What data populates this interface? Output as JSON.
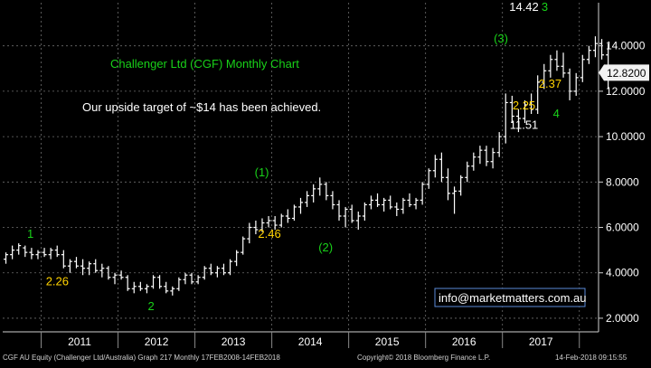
{
  "chart_data": {
    "type": "ohlc",
    "title": "Challenger Ltd (CGF) Monthly Chart",
    "note": "Our upside target of ~$14 has been achieved.",
    "contact": "info@marketmatters.com.au",
    "footer_left": "CGF AU Equity (Challenger Ltd/Australia) Graph 217  Monthly 17FEB2008-14FEB2018",
    "footer_mid": "Copyright© 2018 Bloomberg Finance L.P.",
    "footer_right": "14-Feb-2018 09:15:55",
    "last_price": "12.8200",
    "y_ticks": [
      "2.0000",
      "4.0000",
      "6.0000",
      "8.0000",
      "10.0000",
      "12.0000",
      "14.0000"
    ],
    "y_tick_values": [
      2,
      4,
      6,
      8,
      10,
      12,
      14
    ],
    "ylim": [
      1.4,
      15.9
    ],
    "x_years": [
      "2011",
      "2012",
      "2013",
      "2014",
      "2015",
      "2016",
      "2017"
    ],
    "start_year": 2010.5,
    "end_year": 2018.25,
    "colors": {
      "up": "#ffffff",
      "down": "#ffffff",
      "grid": "#6e6e6e",
      "green": "#19d219",
      "yellow": "#ffd200",
      "white": "#ffffff"
    },
    "bars": [
      [
        4.6,
        4.9,
        4.4,
        4.8
      ],
      [
        4.8,
        5.2,
        4.6,
        5.0
      ],
      [
        5.0,
        5.3,
        4.8,
        5.2
      ],
      [
        5.1,
        5.2,
        4.7,
        4.9
      ],
      [
        4.9,
        5.1,
        4.6,
        4.8
      ],
      [
        4.8,
        5.0,
        4.6,
        4.9
      ],
      [
        4.9,
        5.1,
        4.7,
        4.8
      ],
      [
        4.8,
        5.1,
        4.6,
        5.0
      ],
      [
        5.0,
        5.2,
        4.7,
        4.8
      ],
      [
        4.8,
        5.0,
        4.2,
        4.3
      ],
      [
        4.3,
        4.6,
        4.0,
        4.5
      ],
      [
        4.5,
        4.7,
        4.2,
        4.3
      ],
      [
        4.3,
        4.6,
        3.9,
        4.2
      ],
      [
        4.2,
        4.5,
        3.9,
        4.4
      ],
      [
        4.4,
        4.6,
        4.0,
        4.1
      ],
      [
        4.1,
        4.4,
        3.8,
        4.2
      ],
      [
        4.2,
        4.3,
        3.7,
        3.8
      ],
      [
        3.8,
        4.0,
        3.5,
        3.9
      ],
      [
        3.9,
        4.1,
        3.7,
        3.8
      ],
      [
        3.8,
        3.9,
        3.2,
        3.3
      ],
      [
        3.3,
        3.6,
        3.1,
        3.4
      ],
      [
        3.4,
        3.6,
        3.2,
        3.3
      ],
      [
        3.3,
        3.5,
        3.1,
        3.4
      ],
      [
        3.4,
        3.9,
        3.3,
        3.8
      ],
      [
        3.8,
        3.9,
        3.3,
        3.4
      ],
      [
        3.4,
        3.6,
        3.1,
        3.2
      ],
      [
        3.2,
        3.4,
        3.0,
        3.3
      ],
      [
        3.3,
        3.8,
        3.2,
        3.7
      ],
      [
        3.7,
        4.0,
        3.5,
        3.9
      ],
      [
        3.9,
        4.0,
        3.5,
        3.6
      ],
      [
        3.6,
        3.9,
        3.5,
        3.8
      ],
      [
        3.8,
        4.3,
        3.7,
        4.2
      ],
      [
        4.2,
        4.4,
        3.9,
        4.0
      ],
      [
        4.0,
        4.3,
        3.8,
        4.2
      ],
      [
        4.2,
        4.4,
        3.9,
        4.0
      ],
      [
        4.0,
        4.6,
        3.9,
        4.5
      ],
      [
        4.5,
        5.0,
        4.3,
        4.9
      ],
      [
        4.9,
        5.6,
        4.8,
        5.5
      ],
      [
        5.5,
        6.2,
        5.3,
        6.0
      ],
      [
        6.0,
        6.3,
        5.7,
        5.9
      ],
      [
        5.9,
        6.4,
        5.8,
        6.2
      ],
      [
        6.2,
        6.5,
        6.0,
        6.3
      ],
      [
        6.3,
        6.5,
        5.9,
        6.1
      ],
      [
        6.1,
        6.6,
        6.0,
        6.5
      ],
      [
        6.5,
        6.8,
        6.2,
        6.4
      ],
      [
        6.4,
        7.0,
        6.3,
        6.9
      ],
      [
        6.9,
        7.3,
        6.6,
        7.1
      ],
      [
        7.1,
        7.6,
        6.9,
        7.4
      ],
      [
        7.4,
        7.9,
        7.1,
        7.7
      ],
      [
        7.7,
        8.2,
        7.4,
        7.9
      ],
      [
        7.9,
        8.0,
        7.2,
        7.4
      ],
      [
        7.4,
        7.6,
        6.8,
        7.0
      ],
      [
        7.0,
        7.2,
        6.3,
        6.5
      ],
      [
        6.5,
        6.9,
        6.0,
        6.8
      ],
      [
        6.8,
        7.0,
        6.2,
        6.3
      ],
      [
        6.3,
        6.7,
        5.9,
        6.5
      ],
      [
        6.5,
        7.1,
        6.3,
        7.0
      ],
      [
        7.0,
        7.4,
        6.8,
        7.2
      ],
      [
        7.2,
        7.5,
        6.9,
        7.0
      ],
      [
        7.0,
        7.3,
        6.7,
        7.2
      ],
      [
        7.2,
        7.4,
        6.8,
        6.9
      ],
      [
        6.9,
        7.1,
        6.5,
        6.8
      ],
      [
        6.8,
        7.3,
        6.6,
        7.2
      ],
      [
        7.2,
        7.5,
        6.9,
        7.0
      ],
      [
        7.0,
        7.3,
        6.8,
        7.2
      ],
      [
        7.2,
        8.0,
        7.0,
        7.9
      ],
      [
        7.9,
        8.6,
        7.7,
        8.5
      ],
      [
        8.5,
        9.2,
        8.2,
        9.0
      ],
      [
        9.0,
        9.3,
        8.0,
        8.2
      ],
      [
        8.2,
        8.6,
        7.2,
        7.5
      ],
      [
        7.5,
        7.8,
        6.6,
        7.6
      ],
      [
        7.6,
        8.3,
        7.4,
        8.2
      ],
      [
        8.2,
        8.9,
        8.0,
        8.7
      ],
      [
        8.7,
        9.3,
        8.5,
        9.1
      ],
      [
        9.1,
        9.6,
        8.8,
        9.4
      ],
      [
        9.4,
        9.6,
        8.7,
        8.9
      ],
      [
        8.9,
        9.5,
        8.6,
        9.3
      ],
      [
        9.3,
        10.2,
        9.1,
        10.0
      ],
      [
        10.0,
        11.9,
        9.7,
        11.5
      ],
      [
        11.5,
        11.8,
        10.6,
        10.9
      ],
      [
        10.9,
        11.2,
        10.2,
        10.8
      ],
      [
        10.8,
        11.6,
        10.6,
        11.4
      ],
      [
        11.4,
        11.9,
        11.0,
        11.2
      ],
      [
        11.2,
        12.7,
        11.0,
        12.4
      ],
      [
        12.4,
        13.2,
        12.1,
        12.9
      ],
      [
        12.9,
        13.6,
        12.6,
        13.4
      ],
      [
        13.4,
        13.8,
        12.9,
        13.1
      ],
      [
        13.1,
        13.7,
        12.6,
        12.8
      ],
      [
        12.8,
        13.0,
        11.6,
        12.0
      ],
      [
        12.0,
        12.8,
        11.8,
        12.6
      ],
      [
        12.6,
        13.6,
        12.4,
        13.4
      ],
      [
        13.4,
        14.0,
        13.2,
        13.8
      ],
      [
        13.8,
        14.42,
        13.5,
        14.1
      ],
      [
        14.1,
        14.3,
        13.4,
        13.6
      ],
      [
        13.6,
        14.1,
        12.1,
        12.82
      ]
    ],
    "annotations": [
      {
        "text": "1",
        "kind": "green",
        "date": 2010.86,
        "price": 5.55
      },
      {
        "text": "2.26",
        "kind": "yellow",
        "date": 2011.21,
        "price": 3.45
      },
      {
        "text": "2",
        "kind": "green",
        "date": 2012.43,
        "price": 2.35
      },
      {
        "text": "(1)",
        "kind": "green",
        "date": 2013.87,
        "price": 8.25
      },
      {
        "text": "2.46",
        "kind": "yellow",
        "date": 2013.97,
        "price": 5.55
      },
      {
        "text": "(2)",
        "kind": "green",
        "date": 2014.7,
        "price": 4.95
      },
      {
        "text": "(3)",
        "kind": "green",
        "date": 2016.98,
        "price": 14.15
      },
      {
        "text": "14.42",
        "kind": "white",
        "date": 2017.28,
        "price": 15.55
      },
      {
        "text": "3",
        "kind": "green",
        "date": 2017.55,
        "price": 15.55
      },
      {
        "text": "2.25",
        "kind": "yellow",
        "date": 2017.28,
        "price": 11.2
      },
      {
        "text": "11.51",
        "kind": "white",
        "date": 2017.28,
        "price": 10.35
      },
      {
        "text": "2.37",
        "kind": "yellow",
        "date": 2017.62,
        "price": 12.15
      },
      {
        "text": "4",
        "kind": "green",
        "date": 2017.7,
        "price": 10.85
      }
    ]
  }
}
